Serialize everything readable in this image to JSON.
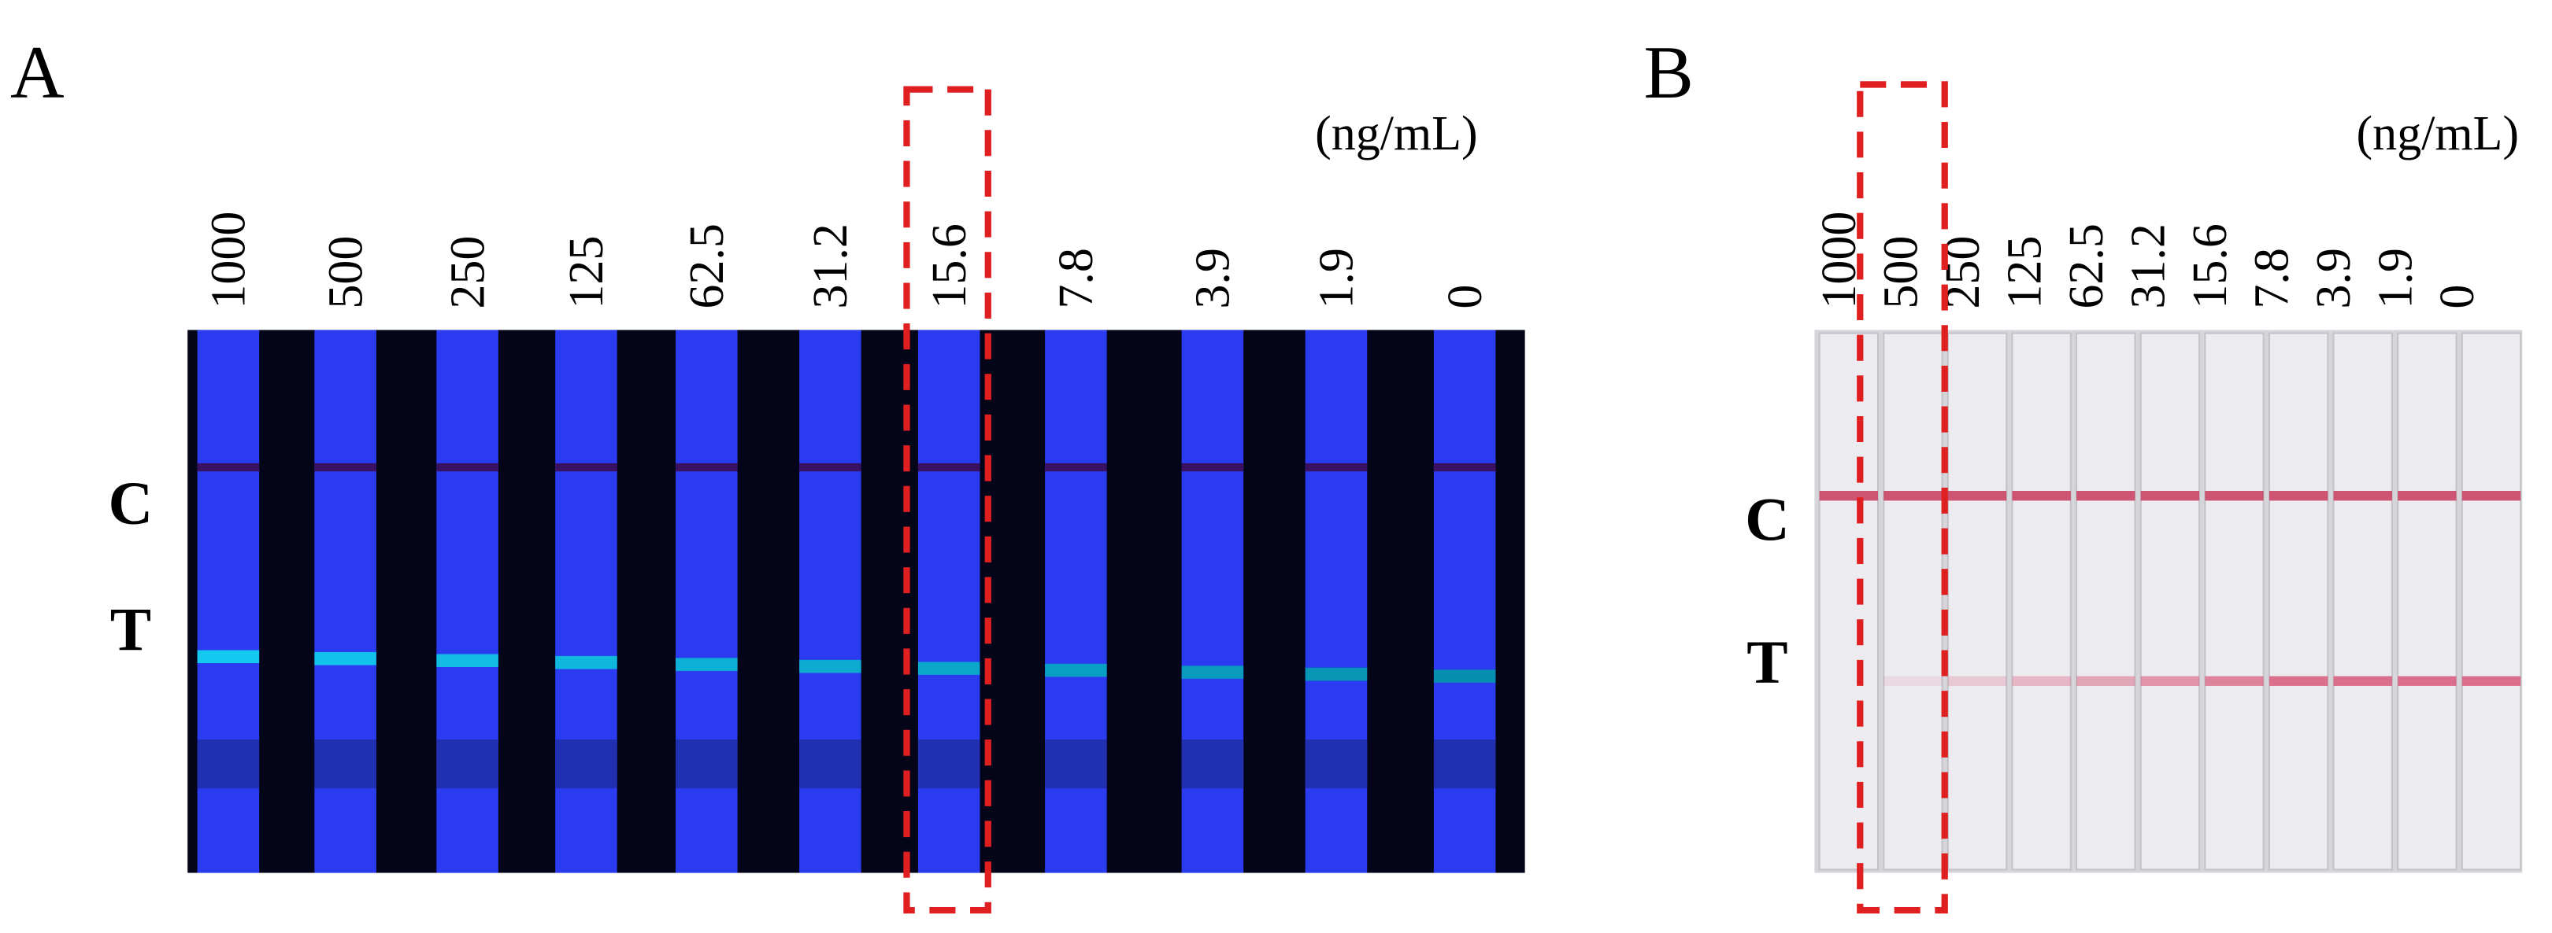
{
  "panels": [
    {
      "label": "A",
      "unit": "(ng/mL)",
      "concentrations": [
        "1000",
        "500",
        "250",
        "125",
        "62.5",
        "31.2",
        "15.6",
        "7.8",
        "3.9",
        "1.9",
        "0"
      ],
      "rows": [
        "C",
        "T"
      ]
    },
    {
      "label": "B",
      "unit": "(ng/mL)",
      "concentrations": [
        "1000",
        "500",
        "250",
        "125",
        "62.5",
        "31.2",
        "15.6",
        "7.8",
        "3.9",
        "1.9",
        "0"
      ],
      "rows": [
        "C",
        "T"
      ]
    }
  ]
}
